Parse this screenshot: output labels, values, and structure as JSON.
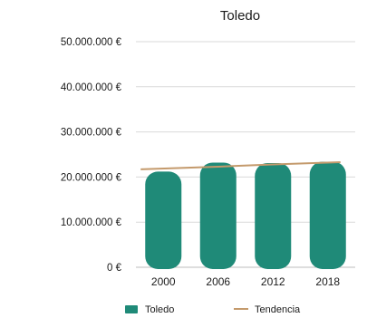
{
  "chart_data": {
    "type": "bar",
    "title": "Toledo",
    "categories": [
      "2000",
      "2006",
      "2012",
      "2018"
    ],
    "series": [
      {
        "name": "Toledo",
        "type": "bar",
        "values": [
          20800000,
          22800000,
          22700000,
          23000000
        ]
      },
      {
        "name": "Tendencia",
        "type": "line",
        "values": [
          21700000,
          22300000,
          22800000,
          23300000
        ]
      }
    ],
    "ylim": [
      0,
      50000000
    ],
    "yticks": [
      0,
      10000000,
      20000000,
      30000000,
      40000000,
      50000000
    ],
    "ytick_labels": [
      "0 €",
      "10.000.000 €",
      "20.000.000 €",
      "30.000.000 €",
      "40.000.000 €",
      "50.000.000 €"
    ],
    "grid": true,
    "legend_position": "bottom",
    "colors": {
      "bar": "#1f8a78",
      "trend": "#c49a6c"
    }
  }
}
